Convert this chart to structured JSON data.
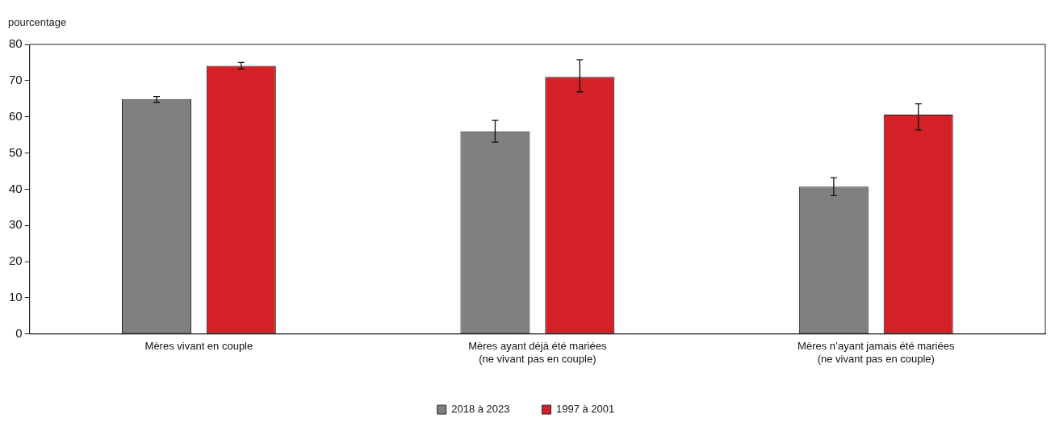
{
  "chart_data": {
    "type": "bar",
    "ylabel": "pourcentage",
    "categories": [
      "Mères vivant en couple",
      "Mères ayant déjà été mariées\n(ne vivant pas en couple)",
      "Mères n’ayant jamais été mariées\n(ne vivant pas en couple)"
    ],
    "series": [
      {
        "name": "2018 à 2023",
        "color": "#808080",
        "values": [
          64.9,
          56.0,
          40.7
        ],
        "errors": [
          [
            64.0,
            65.6
          ],
          [
            53.0,
            59.0
          ],
          [
            38.2,
            43.2
          ]
        ]
      },
      {
        "name": "1997 à 2001",
        "color": "#d42027",
        "values": [
          74.1,
          71.0,
          60.6
        ],
        "errors": [
          [
            73.2,
            75.0
          ],
          [
            66.9,
            75.8
          ],
          [
            56.4,
            63.6
          ]
        ]
      }
    ],
    "ylim": [
      0,
      80
    ],
    "yticks": [
      0,
      10,
      20,
      30,
      40,
      50,
      60,
      70,
      80
    ],
    "grid": false,
    "legend": "bottom"
  }
}
